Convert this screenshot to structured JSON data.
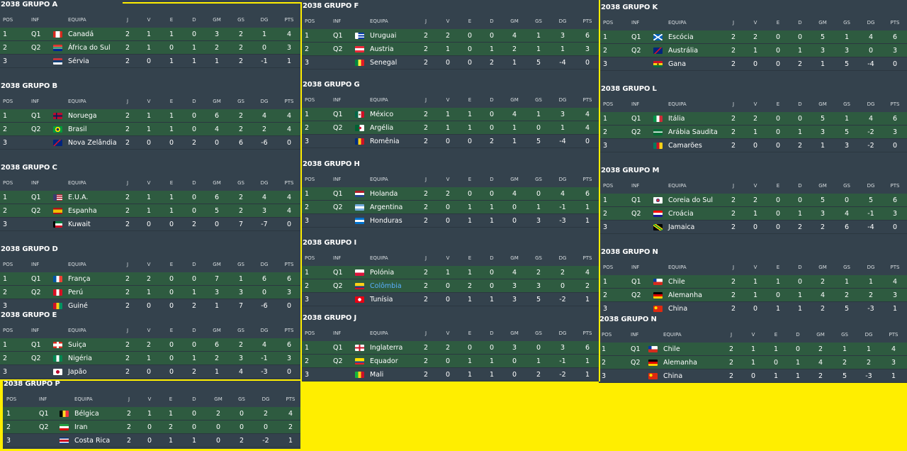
{
  "headers": {
    "pos": "POS",
    "inf": "INF",
    "team": "EQUIPA",
    "j": "J",
    "v": "V",
    "e": "E",
    "d": "D",
    "gm": "GM",
    "gs": "GS",
    "dg": "DG",
    "pts": "PTS"
  },
  "groups": [
    {
      "id": "A",
      "title": "2038 GRUPO A",
      "rows": [
        {
          "pos": "1",
          "inf": "Q1",
          "team": "Canadá",
          "flag": "canada",
          "j": "2",
          "v": "1",
          "e": "1",
          "d": "0",
          "gm": "3",
          "gs": "2",
          "dg": "1",
          "pts": "4"
        },
        {
          "pos": "2",
          "inf": "Q2",
          "team": "África do Sul",
          "flag": "south-africa",
          "j": "2",
          "v": "1",
          "e": "0",
          "d": "1",
          "gm": "2",
          "gs": "2",
          "dg": "0",
          "pts": "3"
        },
        {
          "pos": "3",
          "inf": "",
          "team": "Sérvia",
          "flag": "serbia",
          "j": "2",
          "v": "0",
          "e": "1",
          "d": "1",
          "gm": "1",
          "gs": "2",
          "dg": "-1",
          "pts": "1"
        }
      ]
    },
    {
      "id": "B",
      "title": "2038 GRUPO B",
      "rows": [
        {
          "pos": "1",
          "inf": "Q1",
          "team": "Noruega",
          "flag": "norway",
          "j": "2",
          "v": "1",
          "e": "1",
          "d": "0",
          "gm": "6",
          "gs": "2",
          "dg": "4",
          "pts": "4"
        },
        {
          "pos": "2",
          "inf": "Q2",
          "team": "Brasil",
          "flag": "brazil",
          "j": "2",
          "v": "1",
          "e": "1",
          "d": "0",
          "gm": "4",
          "gs": "2",
          "dg": "2",
          "pts": "4"
        },
        {
          "pos": "3",
          "inf": "",
          "team": "Nova Zelândia",
          "flag": "new-zealand",
          "j": "2",
          "v": "0",
          "e": "0",
          "d": "2",
          "gm": "0",
          "gs": "6",
          "dg": "-6",
          "pts": "0"
        }
      ]
    },
    {
      "id": "C",
      "title": "2038 GRUPO C",
      "rows": [
        {
          "pos": "1",
          "inf": "Q1",
          "team": "E.U.A.",
          "flag": "usa",
          "j": "2",
          "v": "1",
          "e": "1",
          "d": "0",
          "gm": "6",
          "gs": "2",
          "dg": "4",
          "pts": "4"
        },
        {
          "pos": "2",
          "inf": "Q2",
          "team": "Espanha",
          "flag": "spain",
          "j": "2",
          "v": "1",
          "e": "1",
          "d": "0",
          "gm": "5",
          "gs": "2",
          "dg": "3",
          "pts": "4"
        },
        {
          "pos": "3",
          "inf": "",
          "team": "Kuwait",
          "flag": "kuwait",
          "j": "2",
          "v": "0",
          "e": "0",
          "d": "2",
          "gm": "0",
          "gs": "7",
          "dg": "-7",
          "pts": "0"
        }
      ]
    },
    {
      "id": "D",
      "title": "2038 GRUPO D",
      "rows": [
        {
          "pos": "1",
          "inf": "Q1",
          "team": "França",
          "flag": "france",
          "j": "2",
          "v": "2",
          "e": "0",
          "d": "0",
          "gm": "7",
          "gs": "1",
          "dg": "6",
          "pts": "6"
        },
        {
          "pos": "2",
          "inf": "Q2",
          "team": "Perú",
          "flag": "peru",
          "j": "2",
          "v": "1",
          "e": "0",
          "d": "1",
          "gm": "3",
          "gs": "3",
          "dg": "0",
          "pts": "3"
        },
        {
          "pos": "3",
          "inf": "",
          "team": "Guiné",
          "flag": "guinea",
          "j": "2",
          "v": "0",
          "e": "0",
          "d": "2",
          "gm": "1",
          "gs": "7",
          "dg": "-6",
          "pts": "0"
        }
      ]
    },
    {
      "id": "E",
      "title": "2038 GRUPO E",
      "rows": [
        {
          "pos": "1",
          "inf": "Q1",
          "team": "Suiça",
          "flag": "switzerland",
          "j": "2",
          "v": "2",
          "e": "0",
          "d": "0",
          "gm": "6",
          "gs": "2",
          "dg": "4",
          "pts": "6"
        },
        {
          "pos": "2",
          "inf": "Q2",
          "team": "Nigéria",
          "flag": "nigeria",
          "j": "2",
          "v": "1",
          "e": "0",
          "d": "1",
          "gm": "2",
          "gs": "3",
          "dg": "-1",
          "pts": "3"
        },
        {
          "pos": "3",
          "inf": "",
          "team": "Japão",
          "flag": "japan",
          "j": "2",
          "v": "0",
          "e": "0",
          "d": "2",
          "gm": "1",
          "gs": "4",
          "dg": "-3",
          "pts": "0"
        }
      ]
    },
    {
      "id": "P",
      "title": "2038 GRUPO P",
      "rows": [
        {
          "pos": "1",
          "inf": "Q1",
          "team": "Bélgica",
          "flag": "belgium",
          "j": "2",
          "v": "1",
          "e": "1",
          "d": "0",
          "gm": "2",
          "gs": "0",
          "dg": "2",
          "pts": "4"
        },
        {
          "pos": "2",
          "inf": "Q2",
          "team": "Iran",
          "flag": "iran",
          "j": "2",
          "v": "0",
          "e": "2",
          "d": "0",
          "gm": "0",
          "gs": "0",
          "dg": "0",
          "pts": "2"
        },
        {
          "pos": "3",
          "inf": "",
          "team": "Costa Rica",
          "flag": "costa-rica",
          "j": "2",
          "v": "0",
          "e": "1",
          "d": "1",
          "gm": "0",
          "gs": "2",
          "dg": "-2",
          "pts": "1"
        }
      ]
    },
    {
      "id": "F",
      "title": "2038 GRUPO F",
      "rows": [
        {
          "pos": "1",
          "inf": "Q1",
          "team": "Uruguai",
          "flag": "uruguay",
          "j": "2",
          "v": "2",
          "e": "0",
          "d": "0",
          "gm": "4",
          "gs": "1",
          "dg": "3",
          "pts": "6"
        },
        {
          "pos": "2",
          "inf": "Q2",
          "team": "Austria",
          "flag": "austria",
          "j": "2",
          "v": "1",
          "e": "0",
          "d": "1",
          "gm": "2",
          "gs": "1",
          "dg": "1",
          "pts": "3"
        },
        {
          "pos": "3",
          "inf": "",
          "team": "Senegal",
          "flag": "senegal",
          "j": "2",
          "v": "0",
          "e": "0",
          "d": "2",
          "gm": "1",
          "gs": "5",
          "dg": "-4",
          "pts": "0"
        }
      ]
    },
    {
      "id": "G",
      "title": "2038 GRUPO G",
      "rows": [
        {
          "pos": "1",
          "inf": "Q1",
          "team": "México",
          "flag": "mexico",
          "j": "2",
          "v": "1",
          "e": "1",
          "d": "0",
          "gm": "4",
          "gs": "1",
          "dg": "3",
          "pts": "4"
        },
        {
          "pos": "2",
          "inf": "Q2",
          "team": "Argélia",
          "flag": "algeria",
          "j": "2",
          "v": "1",
          "e": "1",
          "d": "0",
          "gm": "1",
          "gs": "0",
          "dg": "1",
          "pts": "4"
        },
        {
          "pos": "3",
          "inf": "",
          "team": "Romênia",
          "flag": "romania",
          "j": "2",
          "v": "0",
          "e": "0",
          "d": "2",
          "gm": "1",
          "gs": "5",
          "dg": "-4",
          "pts": "0"
        }
      ]
    },
    {
      "id": "H",
      "title": "2038 GRUPO H",
      "rows": [
        {
          "pos": "1",
          "inf": "Q1",
          "team": "Holanda",
          "flag": "netherlands",
          "j": "2",
          "v": "2",
          "e": "0",
          "d": "0",
          "gm": "4",
          "gs": "0",
          "dg": "4",
          "pts": "6"
        },
        {
          "pos": "2",
          "inf": "Q2",
          "team": "Argentina",
          "flag": "argentina",
          "j": "2",
          "v": "0",
          "e": "1",
          "d": "1",
          "gm": "0",
          "gs": "1",
          "dg": "-1",
          "pts": "1"
        },
        {
          "pos": "3",
          "inf": "",
          "team": "Honduras",
          "flag": "honduras",
          "j": "2",
          "v": "0",
          "e": "1",
          "d": "1",
          "gm": "0",
          "gs": "3",
          "dg": "-3",
          "pts": "1"
        }
      ]
    },
    {
      "id": "I",
      "title": "2038 GRUPO I",
      "rows": [
        {
          "pos": "1",
          "inf": "Q1",
          "team": "Polónia",
          "flag": "poland",
          "j": "2",
          "v": "1",
          "e": "1",
          "d": "0",
          "gm": "4",
          "gs": "2",
          "dg": "2",
          "pts": "4"
        },
        {
          "pos": "2",
          "inf": "Q2",
          "team": "Colômbia",
          "flag": "colombia",
          "link": true,
          "j": "2",
          "v": "0",
          "e": "2",
          "d": "0",
          "gm": "3",
          "gs": "3",
          "dg": "0",
          "pts": "2"
        },
        {
          "pos": "3",
          "inf": "",
          "team": "Tunísia",
          "flag": "tunisia",
          "j": "2",
          "v": "0",
          "e": "1",
          "d": "1",
          "gm": "3",
          "gs": "5",
          "dg": "-2",
          "pts": "1"
        }
      ]
    },
    {
      "id": "J",
      "title": "2038 GRUPO J",
      "rows": [
        {
          "pos": "1",
          "inf": "Q1",
          "team": "Inglaterra",
          "flag": "england",
          "j": "2",
          "v": "2",
          "e": "0",
          "d": "0",
          "gm": "3",
          "gs": "0",
          "dg": "3",
          "pts": "6"
        },
        {
          "pos": "2",
          "inf": "Q2",
          "team": "Equador",
          "flag": "ecuador",
          "j": "2",
          "v": "0",
          "e": "1",
          "d": "1",
          "gm": "0",
          "gs": "1",
          "dg": "-1",
          "pts": "1"
        },
        {
          "pos": "3",
          "inf": "",
          "team": "Mali",
          "flag": "mali",
          "j": "2",
          "v": "0",
          "e": "1",
          "d": "1",
          "gm": "0",
          "gs": "2",
          "dg": "-2",
          "pts": "1"
        }
      ]
    },
    {
      "id": "K",
      "title": "2038 GRUPO K",
      "rows": [
        {
          "pos": "1",
          "inf": "Q1",
          "team": "Escócia",
          "flag": "scotland",
          "j": "2",
          "v": "2",
          "e": "0",
          "d": "0",
          "gm": "5",
          "gs": "1",
          "dg": "4",
          "pts": "6"
        },
        {
          "pos": "2",
          "inf": "Q2",
          "team": "Austrália",
          "flag": "australia",
          "j": "2",
          "v": "1",
          "e": "0",
          "d": "1",
          "gm": "3",
          "gs": "3",
          "dg": "0",
          "pts": "3"
        },
        {
          "pos": "3",
          "inf": "",
          "team": "Gana",
          "flag": "ghana",
          "j": "2",
          "v": "0",
          "e": "0",
          "d": "2",
          "gm": "1",
          "gs": "5",
          "dg": "-4",
          "pts": "0"
        }
      ]
    },
    {
      "id": "L",
      "title": "2038 GRUPO L",
      "rows": [
        {
          "pos": "1",
          "inf": "Q1",
          "team": "Itália",
          "flag": "italy",
          "j": "2",
          "v": "2",
          "e": "0",
          "d": "0",
          "gm": "5",
          "gs": "1",
          "dg": "4",
          "pts": "6"
        },
        {
          "pos": "2",
          "inf": "Q2",
          "team": "Arábia Saudita",
          "flag": "saudi-arabia",
          "j": "2",
          "v": "1",
          "e": "0",
          "d": "1",
          "gm": "3",
          "gs": "5",
          "dg": "-2",
          "pts": "3"
        },
        {
          "pos": "3",
          "inf": "",
          "team": "Camarões",
          "flag": "cameroon",
          "j": "2",
          "v": "0",
          "e": "0",
          "d": "2",
          "gm": "1",
          "gs": "3",
          "dg": "-2",
          "pts": "0"
        }
      ]
    },
    {
      "id": "M",
      "title": "2038 GRUPO M",
      "rows": [
        {
          "pos": "1",
          "inf": "Q1",
          "team": "Coreia do Sul",
          "flag": "south-korea",
          "j": "2",
          "v": "2",
          "e": "0",
          "d": "0",
          "gm": "5",
          "gs": "0",
          "dg": "5",
          "pts": "6"
        },
        {
          "pos": "2",
          "inf": "Q2",
          "team": "Croácia",
          "flag": "croatia",
          "j": "2",
          "v": "1",
          "e": "0",
          "d": "1",
          "gm": "3",
          "gs": "4",
          "dg": "-1",
          "pts": "3"
        },
        {
          "pos": "3",
          "inf": "",
          "team": "Jamaica",
          "flag": "jamaica",
          "j": "2",
          "v": "0",
          "e": "0",
          "d": "2",
          "gm": "2",
          "gs": "6",
          "dg": "-4",
          "pts": "0"
        }
      ]
    },
    {
      "id": "N",
      "title": "2038 GRUPO N",
      "rows": [
        {
          "pos": "1",
          "inf": "Q1",
          "team": "Chile",
          "flag": "chile",
          "j": "2",
          "v": "1",
          "e": "1",
          "d": "0",
          "gm": "2",
          "gs": "1",
          "dg": "1",
          "pts": "4"
        },
        {
          "pos": "2",
          "inf": "Q2",
          "team": "Alemanha",
          "flag": "germany",
          "j": "2",
          "v": "1",
          "e": "0",
          "d": "1",
          "gm": "4",
          "gs": "2",
          "dg": "2",
          "pts": "3"
        },
        {
          "pos": "3",
          "inf": "",
          "team": "China",
          "flag": "china",
          "j": "2",
          "v": "0",
          "e": "1",
          "d": "1",
          "gm": "2",
          "gs": "5",
          "dg": "-3",
          "pts": "1"
        }
      ]
    },
    {
      "id": "N2",
      "title": "2038 GRUPO N",
      "rows": [
        {
          "pos": "1",
          "inf": "Q1",
          "team": "Chile",
          "flag": "chile",
          "j": "2",
          "v": "1",
          "e": "1",
          "d": "0",
          "gm": "2",
          "gs": "1",
          "dg": "1",
          "pts": "4"
        },
        {
          "pos": "2",
          "inf": "Q2",
          "team": "Alemanha",
          "flag": "germany",
          "j": "2",
          "v": "1",
          "e": "0",
          "d": "1",
          "gm": "4",
          "gs": "2",
          "dg": "2",
          "pts": "3"
        },
        {
          "pos": "3",
          "inf": "",
          "team": "China",
          "flag": "china",
          "j": "2",
          "v": "0",
          "e": "1",
          "d": "1",
          "gm": "2",
          "gs": "5",
          "dg": "-3",
          "pts": "1"
        }
      ]
    }
  ],
  "colors": {
    "panel": "#34424d",
    "qualified_row": "#2e5b40",
    "highlight": "#ffee00",
    "link": "#5ab0ff"
  }
}
